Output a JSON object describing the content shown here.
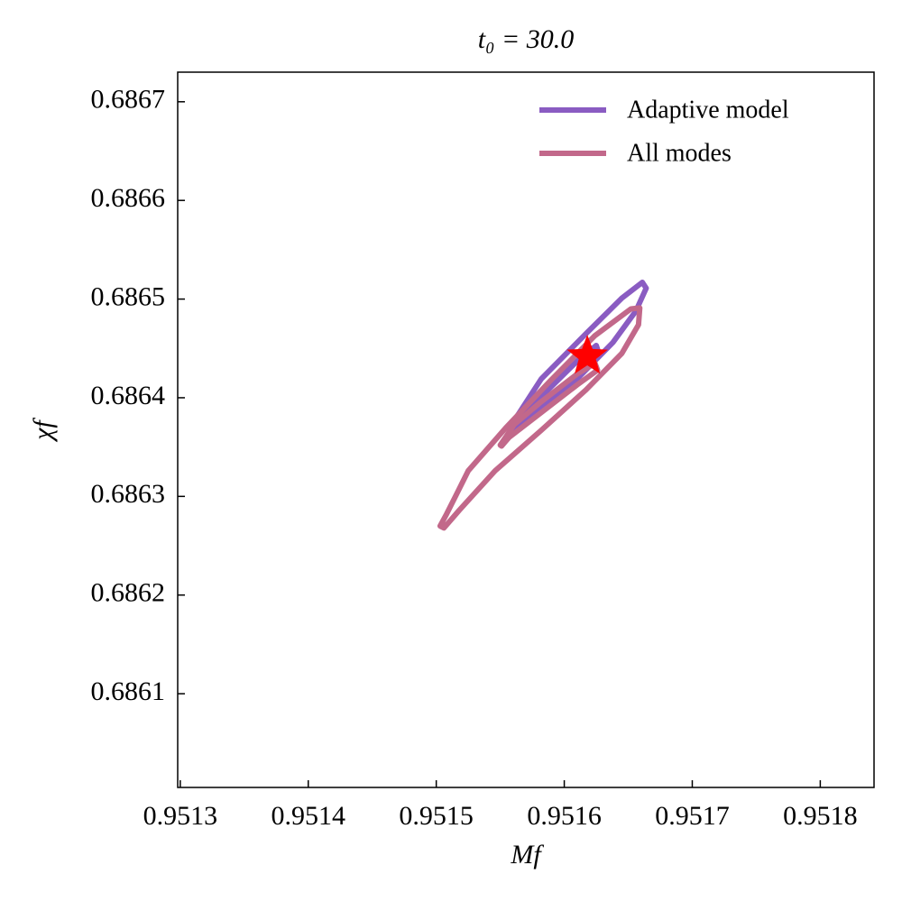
{
  "chart_data": {
    "type": "contour",
    "title": "t₀ = 30.0",
    "xlabel": "Mf",
    "ylabel": "χf",
    "xlim": [
      0.951298,
      0.951842
    ],
    "ylim": [
      0.686005,
      0.68673
    ],
    "xticks": [
      0.9513,
      0.9514,
      0.9515,
      0.9516,
      0.9517,
      0.9518
    ],
    "yticks": [
      0.6861,
      0.6862,
      0.6863,
      0.6864,
      0.6865,
      0.6866,
      0.6867
    ],
    "legend": "upper right",
    "series": [
      {
        "name": "Adaptive model",
        "color": "#8a5cc2",
        "contours": [
          {
            "x": [
              0.951557,
              0.951582,
              0.951617,
              0.951645,
              0.951661,
              0.951664,
              0.951656,
              0.951638,
              0.95161,
              0.951582,
              0.951561
            ],
            "y": [
              0.686369,
              0.686419,
              0.686465,
              0.686501,
              0.686517,
              0.686511,
              0.686488,
              0.686456,
              0.686419,
              0.686387,
              0.686369
            ]
          },
          {
            "x": [
              0.951564,
              0.951585,
              0.95161,
              0.951625,
              0.951627,
              0.951615,
              0.951589,
              0.951566
            ],
            "y": [
              0.686378,
              0.686405,
              0.686437,
              0.686453,
              0.686445,
              0.686426,
              0.686398,
              0.686376
            ]
          }
        ]
      },
      {
        "name": "All modes",
        "color": "#c2688a",
        "contours": [
          {
            "x": [
              0.951503,
              0.951508,
              0.951515,
              0.951525,
              0.951554,
              0.951589,
              0.951624,
              0.951652,
              0.951659,
              0.951658,
              0.951645,
              0.951617,
              0.951582,
              0.951546,
              0.951518,
              0.951506
            ],
            "y": [
              0.68627,
              0.686282,
              0.6863,
              0.686326,
              0.686369,
              0.686417,
              0.686463,
              0.68649,
              0.686491,
              0.686474,
              0.686445,
              0.686408,
              0.686367,
              0.686326,
              0.686286,
              0.686268
            ]
          },
          {
            "x": [
              0.95155,
              0.951561,
              0.951582,
              0.95161,
              0.951624,
              0.951626,
              0.95161,
              0.951582,
              0.951557,
              0.951551
            ],
            "y": [
              0.686352,
              0.686373,
              0.686396,
              0.686424,
              0.686435,
              0.686428,
              0.686413,
              0.686385,
              0.68636,
              0.686351
            ]
          }
        ]
      }
    ],
    "marker": {
      "x": 0.951618,
      "y": 0.686442,
      "color": "#ff0000"
    }
  }
}
